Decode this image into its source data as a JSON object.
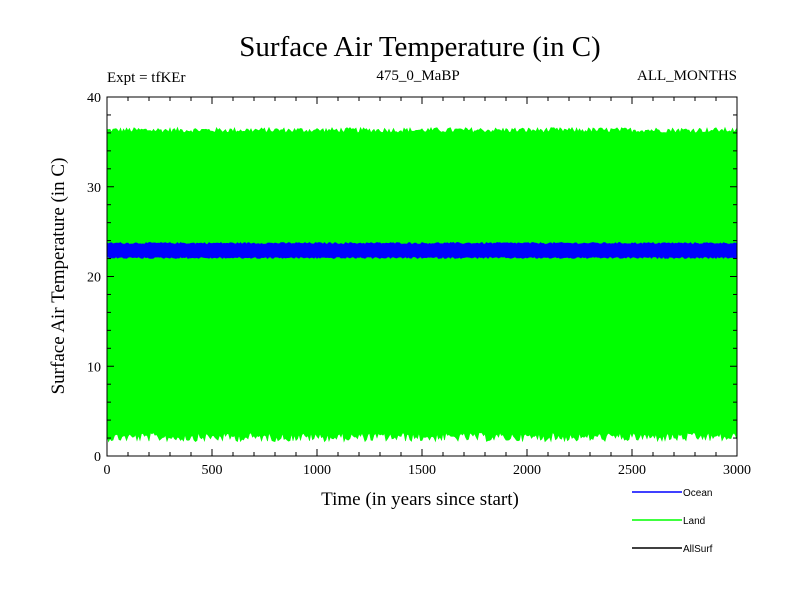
{
  "chart_data": {
    "type": "line",
    "title": "Surface Air Temperature (in C)",
    "header_left": "Expt = tfKEr",
    "header_center": "475_0_MaBP",
    "header_right": "ALL_MONTHS",
    "xlabel": "Time (in years since start)",
    "ylabel": "Surface Air Temperature (in C)",
    "xlim": [
      0,
      3000
    ],
    "ylim": [
      0,
      40
    ],
    "xticks": [
      "0",
      "500",
      "1000",
      "1500",
      "2000",
      "2500",
      "3000"
    ],
    "yticks": [
      "0",
      "10",
      "20",
      "30",
      "40"
    ],
    "grid": false,
    "legend_position": "bottom-right, below plot",
    "series": [
      {
        "name": "Ocean",
        "color": "#0000ff",
        "band_min": 22.2,
        "band_max": 23.6,
        "envelope_low": 22.0,
        "envelope_high": 23.8
      },
      {
        "name": "Land",
        "color": "#00ff00",
        "band_min": 2.6,
        "band_max": 36.0,
        "envelope_low": 1.6,
        "envelope_high": 36.6
      },
      {
        "name": "AllSurf",
        "color": "#000000"
      }
    ]
  }
}
